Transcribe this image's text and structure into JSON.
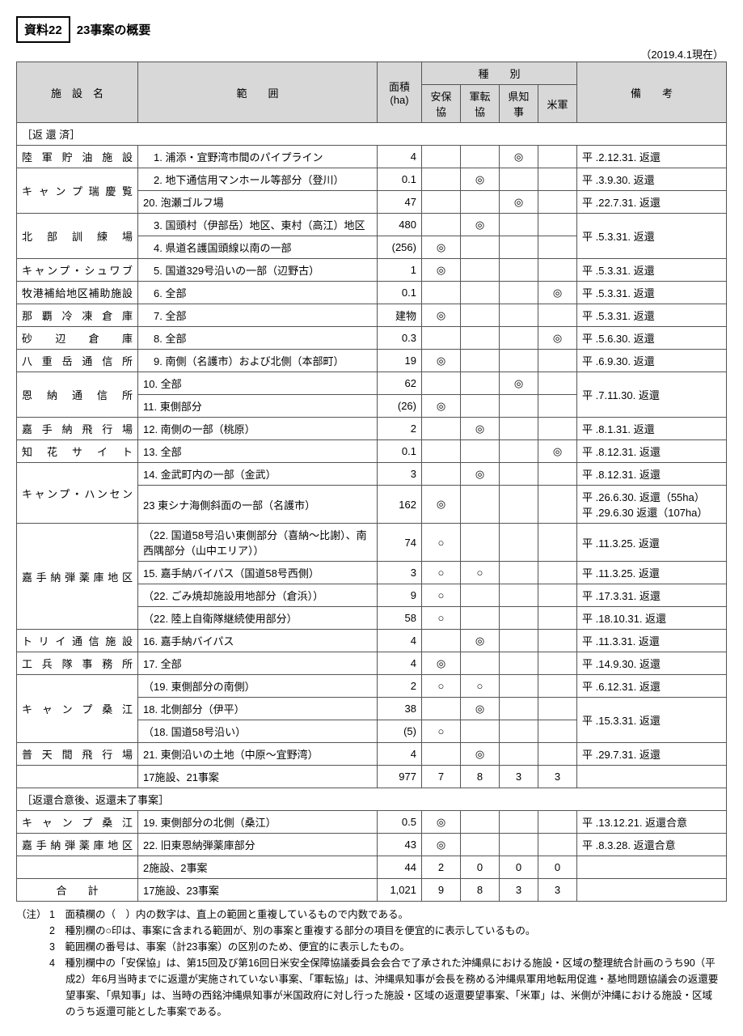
{
  "header_tag": "資料22",
  "header_title": "23事案の概要",
  "asof": "（2019.4.1現在）",
  "cols": {
    "facility": "施　設　名",
    "range": "範　　囲",
    "area": "面積\n(ha)",
    "type": "種　　別",
    "type_anpo": "安保協",
    "type_gunten": "軍転協",
    "type_gov": "県知事",
    "type_us": "米軍",
    "remark": "備　　考"
  },
  "section_returned": "［返 還 済］",
  "rows": [
    {
      "facility": "陸 軍 貯 油 施 設",
      "range": "　1. 浦添・宜野湾市間のパイプライン",
      "area": "4",
      "t": [
        "",
        "",
        "◎",
        ""
      ],
      "remark": "平 .2.12.31. 返還"
    },
    {
      "facility": "キ ャ ン プ 瑞 慶 覧",
      "frows": 2,
      "range": "　2. 地下通信用マンホール等部分（登川）",
      "area": "0.1",
      "t": [
        "",
        "◎",
        "",
        ""
      ],
      "remark": "平 .3.9.30. 返還"
    },
    {
      "range": "20. 泡瀬ゴルフ場",
      "area": "47",
      "t": [
        "",
        "",
        "◎",
        ""
      ],
      "remark": "平 .22.7.31. 返還"
    },
    {
      "facility": "北　部　訓　練　場",
      "frows": 2,
      "range": "　3. 国頭村（伊部岳）地区、東村（高江）地区",
      "area": "480",
      "t": [
        "",
        "◎",
        "",
        ""
      ],
      "remark": "平 .5.3.31. 返還",
      "rrows": 2
    },
    {
      "range": "　4. 県道名護国頭線以南の一部",
      "area": "(256)",
      "t": [
        "◎",
        "",
        "",
        ""
      ]
    },
    {
      "facility": "キャンプ・シュワブ",
      "range": "　5. 国道329号沿いの一部（辺野古）",
      "area": "1",
      "t": [
        "◎",
        "",
        "",
        ""
      ],
      "remark": "平 .5.3.31. 返還"
    },
    {
      "facility": "牧港補給地区補助施設",
      "range": "　6. 全部",
      "area": "0.1",
      "t": [
        "",
        "",
        "",
        "◎"
      ],
      "remark": "平 .5.3.31. 返還"
    },
    {
      "facility": "那 覇 冷 凍 倉 庫",
      "range": "　7. 全部",
      "area": "建物",
      "t": [
        "◎",
        "",
        "",
        ""
      ],
      "remark": "平 .5.3.31. 返還"
    },
    {
      "facility": "砂　 辺　 倉　 庫",
      "range": "　8. 全部",
      "area": "0.3",
      "t": [
        "",
        "",
        "",
        "◎"
      ],
      "remark": "平 .5.6.30. 返還"
    },
    {
      "facility": "八 重 岳 通 信 所",
      "range": "　9. 南側（名護市）および北側（本部町）",
      "area": "19",
      "t": [
        "◎",
        "",
        "",
        ""
      ],
      "remark": "平 .6.9.30. 返還"
    },
    {
      "facility": "恩　納　通　信　所",
      "frows": 2,
      "range": "10. 全部",
      "area": "62",
      "t": [
        "",
        "",
        "◎",
        ""
      ],
      "remark": "平 .7.11.30. 返還",
      "rrows": 2
    },
    {
      "range": "11. 東側部分",
      "area": "(26)",
      "t": [
        "◎",
        "",
        "",
        ""
      ]
    },
    {
      "facility": "嘉 手 納 飛 行 場",
      "range": "12. 南側の一部（桃原）",
      "area": "2",
      "t": [
        "",
        "◎",
        "",
        ""
      ],
      "remark": "平 .8.1.31. 返還"
    },
    {
      "facility": "知　花　サ　イ　ト",
      "range": "13. 全部",
      "area": "0.1",
      "t": [
        "",
        "",
        "",
        "◎"
      ],
      "remark": "平 .8.12.31. 返還"
    },
    {
      "facility": "キャンプ・ハンセン",
      "frows": 2,
      "range": "14. 金武町内の一部（金武）",
      "area": "3",
      "t": [
        "",
        "◎",
        "",
        ""
      ],
      "remark": "平 .8.12.31. 返還"
    },
    {
      "range": "23 東シナ海側斜面の一部（名護市）",
      "area": "162",
      "t": [
        "◎",
        "",
        "",
        ""
      ],
      "remark": "平 .26.6.30. 返還（55ha）\n平 .29.6.30 返還（107ha）"
    },
    {
      "facility": "嘉手納弾薬庫地区",
      "frows": 4,
      "range": "（22. 国道58号沿い東側部分（喜納～比謝）、南西隅部分（山中エリア））",
      "area": "74",
      "t": [
        "○",
        "",
        "",
        ""
      ],
      "remark": "平 .11.3.25. 返還"
    },
    {
      "range": "15. 嘉手納バイパス（国道58号西側）",
      "area": "3",
      "t": [
        "○",
        "○",
        "",
        ""
      ],
      "remark": "平 .11.3.25. 返還"
    },
    {
      "range": "（22. ごみ焼却施設用地部分（倉浜））",
      "area": "9",
      "t": [
        "○",
        "",
        "",
        ""
      ],
      "remark": "平 .17.3.31. 返還"
    },
    {
      "range": "（22. 陸上自衛隊継続使用部分）",
      "area": "58",
      "t": [
        "○",
        "",
        "",
        ""
      ],
      "remark": "平 .18.10.31. 返還"
    },
    {
      "facility": "ト リ イ 通 信 施 設",
      "range": "16. 嘉手納バイパス",
      "area": "4",
      "t": [
        "",
        "◎",
        "",
        ""
      ],
      "remark": "平 .11.3.31. 返還"
    },
    {
      "facility": "工 兵 隊 事 務 所",
      "range": "17. 全部",
      "area": "4",
      "t": [
        "◎",
        "",
        "",
        ""
      ],
      "remark": "平 .14.9.30. 返還"
    },
    {
      "facility": "キ ャ ン プ 桑 江",
      "frows": 3,
      "range": "（19. 東側部分の南側）",
      "area": "2",
      "t": [
        "○",
        "○",
        "",
        ""
      ],
      "remark": "平 .6.12.31. 返還"
    },
    {
      "range": "18. 北側部分（伊平）",
      "area": "38",
      "t": [
        "",
        "◎",
        "",
        ""
      ],
      "remark": "平 .15.3.31. 返還",
      "rrows": 2
    },
    {
      "range": "（18. 国道58号沿い）",
      "area": "(5)",
      "t": [
        "○",
        "",
        "",
        ""
      ]
    },
    {
      "facility": "普 天 間 飛 行 場",
      "range": "21. 東側沿いの土地（中原～宜野湾）",
      "area": "4",
      "t": [
        "",
        "◎",
        "",
        ""
      ],
      "remark": "平 .29.7.31. 返還"
    },
    {
      "facility": "",
      "range": "17施設、21事案",
      "area": "977",
      "t": [
        "7",
        "8",
        "3",
        "3"
      ],
      "remark": ""
    }
  ],
  "section_pending": "［返還合意後、返還未了事案］",
  "rows2": [
    {
      "facility": "キ ャ ン プ 桑 江",
      "range": "19. 東側部分の北側（桑江）",
      "area": "0.5",
      "t": [
        "◎",
        "",
        "",
        ""
      ],
      "remark": "平 .13.12.21. 返還合意"
    },
    {
      "facility": "嘉手納弾薬庫地区",
      "range": "22. 旧東恩納弾薬庫部分",
      "area": "43",
      "t": [
        "◎",
        "",
        "",
        ""
      ],
      "remark": "平 .8.3.28. 返還合意"
    },
    {
      "facility": "",
      "range": "2施設、2事案",
      "area": "44",
      "t": [
        "2",
        "0",
        "0",
        "0"
      ],
      "remark": ""
    },
    {
      "facility": "合　　計",
      "range": "17施設、23事案",
      "area": "1,021",
      "t": [
        "9",
        "8",
        "3",
        "3"
      ],
      "remark": ""
    }
  ],
  "notes_label": "（注）",
  "notes": [
    "1　面積欄の（　）内の数字は、直上の範囲と重複しているもので内数である。",
    "2　種別欄の○印は、事案に含まれる範囲が、別の事案と重複する部分の項目を便宜的に表示しているもの。",
    "3　範囲欄の番号は、事案（計23事案）の区別のため、便宜的に表示したもの。",
    "4　種別欄中の「安保協」は、第15回及び第16回日米安全保障協議委員会会合で了承された沖縄県における施設・区域の整理統合計画のうち90（平成2）年6月当時までに返還が実施されていない事案、「軍転協」は、沖縄県知事が会長を務める沖縄県軍用地転用促進・基地問題協議会の返還要望事案、「県知事」は、当時の西銘沖縄県知事が米国政府に対し行った施設・区域の返還要望事案、「米軍」は、米側が沖縄における施設・区域のうち返還可能とした事案である。"
  ]
}
